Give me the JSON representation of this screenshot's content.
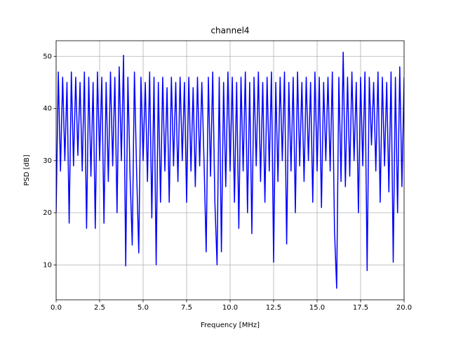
{
  "chart_data": {
    "type": "line",
    "title": "channel4",
    "xlabel": "Frequency [MHz]",
    "ylabel": "PSD [dB]",
    "xlim": [
      0,
      20
    ],
    "ylim": [
      3.3,
      53
    ],
    "xticks": [
      {
        "value": 0,
        "label": "0.0"
      },
      {
        "value": 2.5,
        "label": "2.5"
      },
      {
        "value": 5,
        "label": "5.0"
      },
      {
        "value": 7.5,
        "label": "7.5"
      },
      {
        "value": 10,
        "label": "10.0"
      },
      {
        "value": 12.5,
        "label": "12.5"
      },
      {
        "value": 15,
        "label": "15.0"
      },
      {
        "value": 17.5,
        "label": "17.5"
      },
      {
        "value": 20,
        "label": "20.0"
      }
    ],
    "yticks": [
      10,
      20,
      30,
      40,
      50
    ],
    "grid": true,
    "x": [
      0,
      0.125,
      0.25,
      0.375,
      0.5,
      0.625,
      0.75,
      0.875,
      1,
      1.125,
      1.25,
      1.375,
      1.5,
      1.625,
      1.75,
      1.875,
      2,
      2.125,
      2.25,
      2.375,
      2.5,
      2.625,
      2.75,
      2.875,
      3,
      3.125,
      3.25,
      3.375,
      3.5,
      3.625,
      3.75,
      3.875,
      4,
      4.125,
      4.25,
      4.375,
      4.5,
      4.625,
      4.75,
      4.875,
      5,
      5.125,
      5.25,
      5.375,
      5.5,
      5.625,
      5.75,
      5.875,
      6,
      6.125,
      6.25,
      6.375,
      6.5,
      6.625,
      6.75,
      6.875,
      7,
      7.125,
      7.25,
      7.375,
      7.5,
      7.625,
      7.75,
      7.875,
      8,
      8.125,
      8.25,
      8.375,
      8.5,
      8.625,
      8.75,
      8.875,
      9,
      9.125,
      9.25,
      9.375,
      9.5,
      9.625,
      9.75,
      9.875,
      10,
      10.125,
      10.25,
      10.375,
      10.5,
      10.625,
      10.75,
      10.875,
      11,
      11.125,
      11.25,
      11.375,
      11.5,
      11.625,
      11.75,
      11.875,
      12,
      12.125,
      12.25,
      12.375,
      12.5,
      12.625,
      12.75,
      12.875,
      13,
      13.125,
      13.25,
      13.375,
      13.5,
      13.625,
      13.75,
      13.875,
      14,
      14.125,
      14.25,
      14.375,
      14.5,
      14.625,
      14.75,
      14.875,
      15,
      15.125,
      15.25,
      15.375,
      15.5,
      15.625,
      15.75,
      15.875,
      16,
      16.125,
      16.25,
      16.375,
      16.5,
      16.625,
      16.75,
      16.875,
      17,
      17.125,
      17.25,
      17.375,
      17.5,
      17.625,
      17.75,
      17.875,
      18,
      18.125,
      18.25,
      18.375,
      18.5,
      18.625,
      18.75,
      18.875,
      19,
      19.125,
      19.25,
      19.375,
      19.5,
      19.625,
      19.75,
      19.875,
      20
    ],
    "series": [
      {
        "color": "#0000ff",
        "values": [
          20,
          47,
          28,
          46,
          30,
          45,
          18,
          47,
          29,
          46,
          31,
          45,
          28,
          47,
          17,
          46,
          27,
          45,
          17,
          47,
          30,
          46,
          18,
          45,
          26,
          47,
          29,
          46,
          20,
          48,
          30,
          50.2,
          9.8,
          46,
          27,
          13.8,
          47,
          28,
          12.3,
          46,
          30,
          45,
          26,
          47,
          19,
          46,
          10,
          45,
          22,
          46,
          28,
          44,
          22,
          46,
          29,
          45,
          26,
          46,
          30,
          45,
          22,
          46,
          28,
          44,
          25,
          46,
          29,
          45,
          30,
          12.5,
          46,
          27,
          47,
          22,
          10,
          46,
          12.5,
          45,
          25,
          47,
          28,
          46,
          22,
          45,
          17,
          46,
          28,
          47,
          20,
          45,
          16,
          46,
          29,
          47,
          26,
          45,
          22,
          46,
          28,
          47,
          10.5,
          45,
          26,
          46,
          30,
          47,
          14,
          45,
          28,
          46,
          20,
          47,
          29,
          45,
          26,
          46,
          30,
          45,
          22,
          47,
          28,
          46,
          21,
          45,
          30,
          46,
          28,
          47,
          16.5,
          5.5,
          46,
          26,
          50.8,
          25,
          46,
          27,
          47,
          30,
          45,
          20,
          46,
          29,
          47,
          8.9,
          46,
          33,
          45,
          28,
          47,
          22,
          46,
          29,
          45,
          24,
          47,
          10.5,
          46,
          20,
          48,
          25,
          46
        ]
      }
    ]
  }
}
